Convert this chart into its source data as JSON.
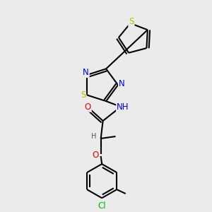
{
  "bg_color": "#ebebeb",
  "atom_colors": {
    "C": "#000000",
    "N": "#0000ee",
    "O": "#ee0000",
    "S": "#bbbb00",
    "Cl": "#00bb00",
    "H": "#555555"
  },
  "bond_color": "#000000",
  "bond_width": 1.5,
  "font_size_atom": 8.5,
  "font_size_small": 7.0,
  "figsize": [
    3.0,
    3.0
  ],
  "dpi": 100
}
